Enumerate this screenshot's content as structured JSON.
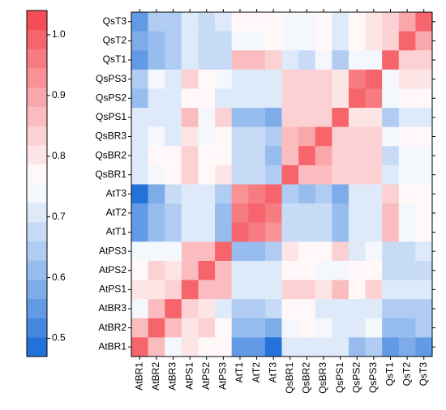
{
  "chart_data": {
    "type": "heatmap",
    "x_categories": [
      "AtBR1",
      "AtBR2",
      "AtBR3",
      "AtPS1",
      "AtPS2",
      "AtPS3",
      "AtT1",
      "AtT2",
      "AtT3",
      "QsBR1",
      "QsBR2",
      "QsBR3",
      "QsPS1",
      "QsPS2",
      "QsPS3",
      "QsT1",
      "QsT2",
      "QsT3"
    ],
    "y_categories": [
      "QsT3",
      "QsT2",
      "QsT1",
      "QsPS3",
      "QsPS2",
      "QsPS1",
      "QsBR3",
      "QsBR2",
      "QsBR1",
      "AtT3",
      "AtT2",
      "AtT1",
      "AtPS3",
      "AtPS2",
      "AtPS1",
      "AtBR3",
      "AtBR2",
      "AtBR1"
    ],
    "values": [
      [
        0.55,
        0.65,
        0.65,
        0.72,
        0.68,
        0.72,
        0.78,
        0.78,
        0.76,
        0.74,
        0.74,
        0.76,
        0.7,
        0.78,
        0.8,
        0.84,
        0.9,
        1
      ],
      [
        0.58,
        0.6,
        0.65,
        0.72,
        0.68,
        0.68,
        0.74,
        0.74,
        0.76,
        0.74,
        0.74,
        0.76,
        0.72,
        0.78,
        0.8,
        0.82,
        1,
        0.9
      ],
      [
        0.55,
        0.6,
        0.65,
        0.72,
        0.68,
        0.68,
        0.86,
        0.86,
        0.84,
        0.72,
        0.68,
        0.74,
        0.65,
        0.74,
        0.74,
        1,
        0.82,
        0.84
      ],
      [
        0.65,
        0.74,
        0.72,
        0.82,
        0.78,
        0.74,
        0.7,
        0.7,
        0.7,
        0.82,
        0.84,
        0.82,
        0.8,
        0.96,
        1,
        0.74,
        0.8,
        0.8
      ],
      [
        0.62,
        0.72,
        0.72,
        0.78,
        0.78,
        0.72,
        0.7,
        0.7,
        0.7,
        0.82,
        0.84,
        0.82,
        0.8,
        1,
        0.96,
        0.74,
        0.78,
        0.78
      ],
      [
        0.7,
        0.72,
        0.7,
        0.85,
        0.74,
        0.84,
        0.6,
        0.62,
        0.58,
        0.82,
        0.82,
        0.84,
        1,
        0.8,
        0.8,
        0.65,
        0.72,
        0.7
      ],
      [
        0.72,
        0.74,
        0.72,
        0.8,
        0.74,
        0.76,
        0.68,
        0.66,
        0.64,
        0.86,
        0.9,
        1,
        0.84,
        0.82,
        0.82,
        0.74,
        0.76,
        0.76
      ],
      [
        0.72,
        0.78,
        0.78,
        0.82,
        0.78,
        0.76,
        0.68,
        0.66,
        0.6,
        0.86,
        1,
        0.9,
        0.82,
        0.84,
        0.84,
        0.68,
        0.74,
        0.74
      ],
      [
        0.72,
        0.74,
        0.76,
        0.82,
        0.78,
        0.8,
        0.68,
        0.66,
        0.64,
        1,
        0.86,
        0.86,
        0.82,
        0.82,
        0.82,
        0.72,
        0.74,
        0.74
      ],
      [
        0.5,
        0.58,
        0.68,
        0.7,
        0.7,
        0.65,
        0.92,
        0.96,
        1,
        0.64,
        0.6,
        0.64,
        0.58,
        0.7,
        0.7,
        0.84,
        0.76,
        0.76
      ],
      [
        0.55,
        0.62,
        0.65,
        0.7,
        0.7,
        0.62,
        0.95,
        1,
        0.96,
        0.66,
        0.66,
        0.66,
        0.62,
        0.7,
        0.7,
        0.86,
        0.74,
        0.78
      ],
      [
        0.55,
        0.62,
        0.65,
        0.7,
        0.7,
        0.62,
        1,
        0.95,
        0.92,
        0.68,
        0.68,
        0.68,
        0.6,
        0.7,
        0.7,
        0.86,
        0.74,
        0.78
      ],
      [
        0.74,
        0.74,
        0.74,
        0.85,
        0.88,
        1,
        0.62,
        0.62,
        0.65,
        0.8,
        0.76,
        0.76,
        0.84,
        0.72,
        0.74,
        0.68,
        0.68,
        0.72
      ],
      [
        0.76,
        0.82,
        0.8,
        0.85,
        1,
        0.88,
        0.7,
        0.7,
        0.7,
        0.78,
        0.78,
        0.74,
        0.74,
        0.78,
        0.78,
        0.68,
        0.68,
        0.68
      ],
      [
        0.8,
        0.8,
        0.82,
        1,
        0.85,
        0.85,
        0.7,
        0.7,
        0.7,
        0.82,
        0.82,
        0.8,
        0.85,
        0.78,
        0.82,
        0.72,
        0.72,
        0.72
      ],
      [
        0.75,
        0.88,
        1,
        0.82,
        0.8,
        0.72,
        0.65,
        0.65,
        0.68,
        0.76,
        0.78,
        0.72,
        0.7,
        0.72,
        0.72,
        0.65,
        0.65,
        0.65
      ],
      [
        0.88,
        1,
        0.88,
        0.8,
        0.82,
        0.78,
        0.62,
        0.62,
        0.58,
        0.74,
        0.78,
        0.74,
        0.72,
        0.72,
        0.74,
        0.6,
        0.6,
        0.65
      ],
      [
        1,
        0.88,
        0.75,
        0.8,
        0.76,
        0.76,
        0.55,
        0.55,
        0.5,
        0.72,
        0.72,
        0.72,
        0.7,
        0.62,
        0.65,
        0.55,
        0.58,
        0.55
      ]
    ],
    "zlim": [
      0.47,
      1.04
    ],
    "zticks": [
      0.5,
      0.6,
      0.7,
      0.8,
      0.9,
      {
        "value": 1.0,
        "label": "1.0"
      }
    ],
    "colors": {
      "low": "#0b62d6",
      "mid": "#ffffff",
      "high": "#f4434b"
    }
  }
}
